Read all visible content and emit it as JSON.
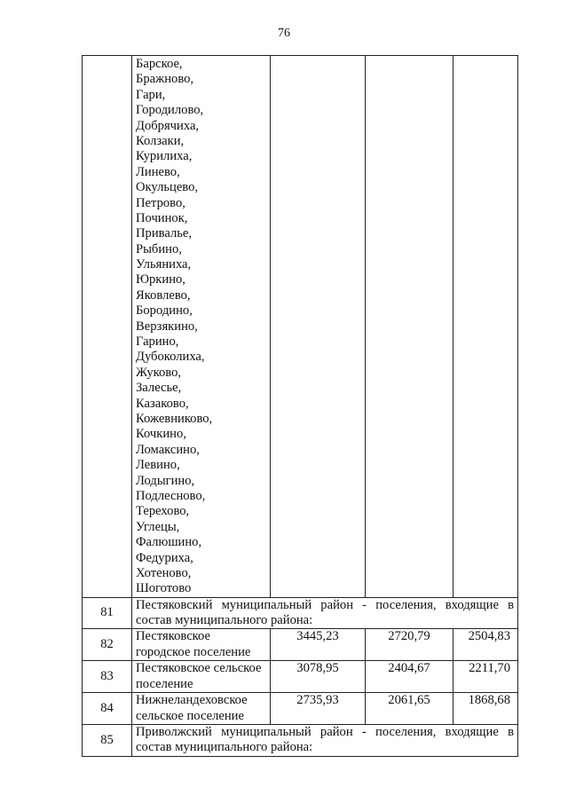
{
  "page_number": "76",
  "settlements_list": [
    "Барское,",
    "Бражново,",
    "Гари,",
    "Городилово,",
    "Добрячиха,",
    "Колзаки,",
    "Курилиха,",
    "Линево,",
    "Окульцево,",
    "Петрово,",
    "Починок,",
    "Привалье,",
    "Рыбино,",
    "Ульяниха,",
    "Юркино,",
    "Яковлево,",
    "Бородино,",
    "Верзякино,",
    "Гарино,",
    "Дубоколиха,",
    "Жуково,",
    "Залесье,",
    "Казаково,",
    "Кожевниково,",
    "Кочкино,",
    "Ломаксино,",
    "Левино,",
    "Лодыгино,",
    "Подлесново,",
    "Терехово,",
    "Углецы,",
    "Фалюшино,",
    "Федуриха,",
    "Хотеново,",
    "Шоготово"
  ],
  "rows": [
    {
      "num": "81",
      "text": "Пестяковский муниципальный район - поселения, входящие в состав муниципального района:"
    },
    {
      "num": "82",
      "name": "Пестяковское городское поселение",
      "v1": "3445,23",
      "v2": "2720,79",
      "v3": "2504,83"
    },
    {
      "num": "83",
      "name": "Пестяковское сельское поселение",
      "v1": "3078,95",
      "v2": "2404,67",
      "v3": "2211,70"
    },
    {
      "num": "84",
      "name": "Нижнеландеховское сельское поселение",
      "v1": "2735,93",
      "v2": "2061,65",
      "v3": "1868,68"
    },
    {
      "num": "85",
      "text": "Приволжский муниципальный район - поселения, входящие в состав муниципального района:"
    }
  ]
}
